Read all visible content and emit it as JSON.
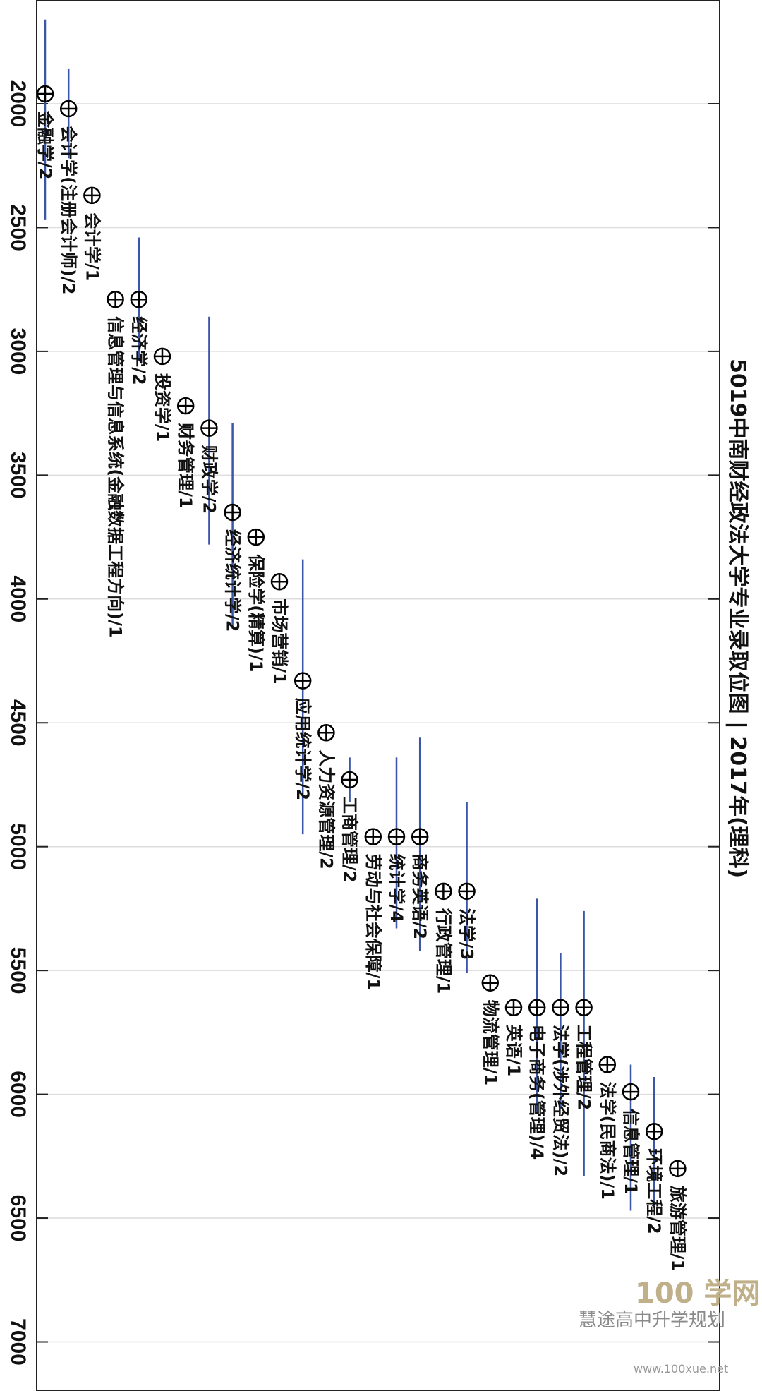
{
  "watermark": {
    "big": "100 学网",
    "caption": "慧途高中升学规划",
    "url": "www.100xue.net"
  },
  "chart_data": {
    "type": "scatter",
    "title": "5019中南财经政法大学专业录取位图 | 2017年(理科)",
    "ylabel": "",
    "xlabel": "",
    "ylim": [
      1620,
      7220
    ],
    "yticks": [
      2000,
      2500,
      3000,
      3500,
      4000,
      4500,
      5000,
      5500,
      6000,
      6500,
      7000
    ],
    "grid": true,
    "points": [
      {
        "label": "金融学/2",
        "value": 1960,
        "low": 1660,
        "high": 2470
      },
      {
        "label": "会计学(注册会计师)/2",
        "value": 2020,
        "low": 1860,
        "high": 2220
      },
      {
        "label": "会计学/1",
        "value": 2370
      },
      {
        "label": "信息管理与信息系统(金融数据工程方向)/1",
        "value": 2790
      },
      {
        "label": "经济学/2",
        "value": 2790,
        "low": 2540,
        "high": 3040
      },
      {
        "label": "投资学/1",
        "value": 3020
      },
      {
        "label": "财务管理/1",
        "value": 3220
      },
      {
        "label": "财政学/2",
        "value": 3310,
        "low": 2860,
        "high": 3780
      },
      {
        "label": "经济统计学/2",
        "value": 3650,
        "low": 3290,
        "high": 4120
      },
      {
        "label": "保险学(精算)/1",
        "value": 3750
      },
      {
        "label": "市场营销/1",
        "value": 3930
      },
      {
        "label": "应用统计学/2",
        "value": 4330,
        "low": 3840,
        "high": 4950
      },
      {
        "label": "人力资源管理/2",
        "value": 4540
      },
      {
        "label": "工商管理/2",
        "value": 4730,
        "low": 4640,
        "high": 4820
      },
      {
        "label": "劳动与社会保障/1",
        "value": 4960
      },
      {
        "label": "统计学/4",
        "value": 4960,
        "low": 4640,
        "high": 5330
      },
      {
        "label": "商务英语/2",
        "value": 4960,
        "low": 4560,
        "high": 5420
      },
      {
        "label": "行政管理/1",
        "value": 5180
      },
      {
        "label": "法学/3",
        "value": 5180,
        "low": 4820,
        "high": 5510
      },
      {
        "label": "物流管理/1",
        "value": 5550
      },
      {
        "label": "英语/1",
        "value": 5650
      },
      {
        "label": "电子商务(管理)/4",
        "value": 5650,
        "low": 5210,
        "high": 6080
      },
      {
        "label": "法学(涉外经贸法)/2",
        "value": 5650,
        "low": 5430,
        "high": 6060
      },
      {
        "label": "工程管理/2",
        "value": 5650,
        "low": 5260,
        "high": 6330
      },
      {
        "label": "法学(民商法)/1",
        "value": 5880
      },
      {
        "label": "信息管理/1",
        "value": 5990,
        "low": 5880,
        "high": 6470
      },
      {
        "label": "环境工程/2",
        "value": 6150,
        "low": 5930,
        "high": 6460
      },
      {
        "label": "旅游管理/1",
        "value": 6300
      }
    ]
  }
}
